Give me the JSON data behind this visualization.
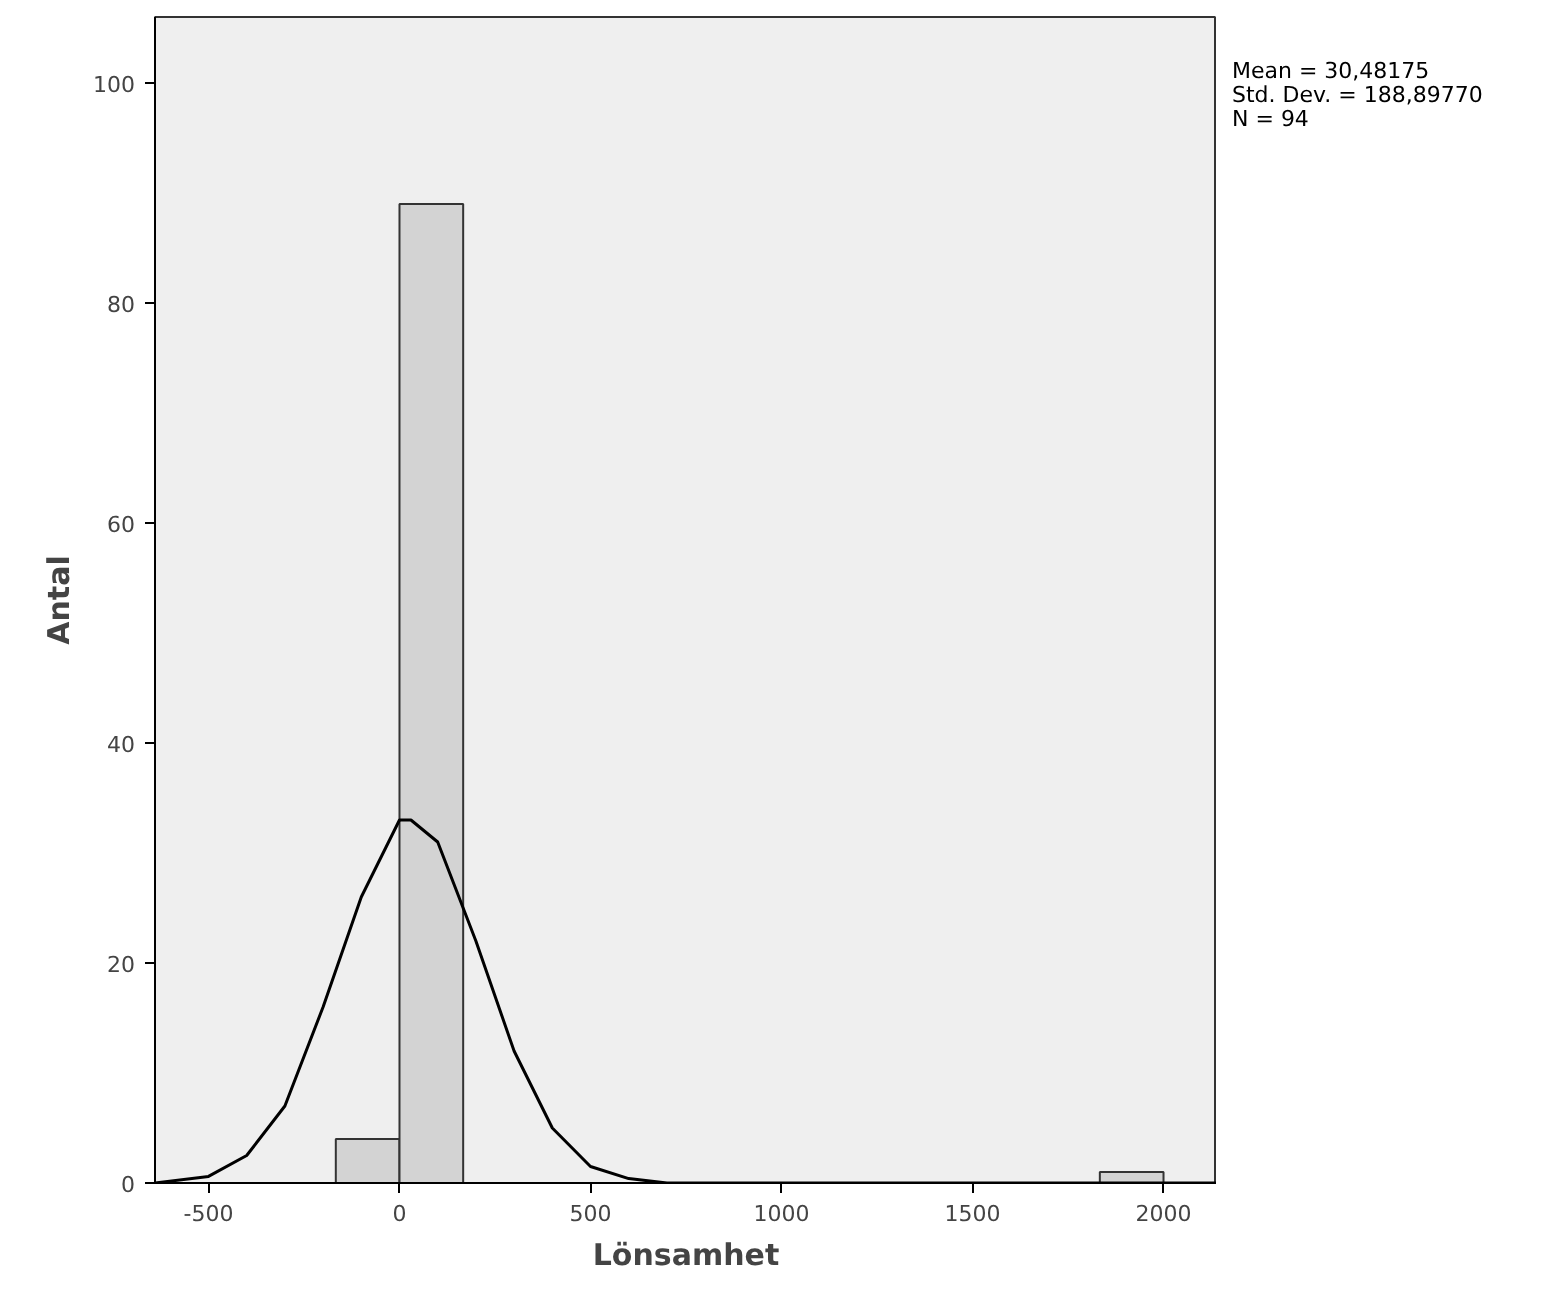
{
  "chart_data": {
    "type": "histogram",
    "xlabel": "Lönsamhet",
    "ylabel": "Antal",
    "bins": [
      -166.7,
      0,
      166.7,
      333.3,
      500,
      666.7,
      833.3,
      1000,
      1166.7,
      1333.3,
      1500,
      1666.7,
      1833.3,
      2000
    ],
    "values": [
      4,
      89,
      0,
      0,
      0,
      0,
      0,
      0,
      0,
      0,
      0,
      0,
      1
    ],
    "color": "#d3d3d3",
    "series": [
      {
        "type": "line",
        "color": "#000000",
        "x": [
          -640,
          -500,
          -400,
          -300,
          -200,
          -100,
          0,
          30,
          100,
          200,
          300,
          400,
          500,
          600,
          700,
          800,
          2140
        ],
        "values": [
          0,
          0.6,
          2.5,
          7,
          16,
          26,
          33,
          33,
          31,
          22,
          12,
          5,
          1.5,
          0.4,
          0,
          0,
          0
        ]
      }
    ],
    "xlim": [
      -640,
      2140
    ],
    "xticks": [
      -500,
      0,
      500,
      1000,
      1500,
      2000
    ],
    "ylim": [
      0,
      106
    ],
    "yticks": [
      0,
      20,
      40,
      60,
      80,
      100
    ],
    "grid": false,
    "annotations": [
      "Mean = 30,48175",
      "Std. Dev. = 188,89770",
      "N = 94"
    ]
  }
}
